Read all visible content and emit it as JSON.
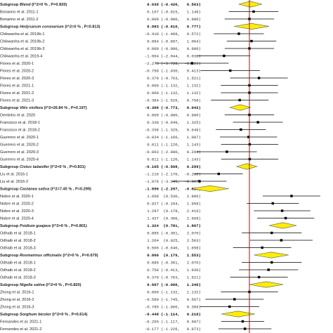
{
  "chart_data": {
    "type": "forest",
    "title": "",
    "xlabel": "",
    "ylabel": "",
    "xlim": [
      -3.2,
      3.2
    ],
    "reference_line": 0,
    "colors": {
      "reference": "#8b1a1a",
      "diamond_fill": "#ffee00",
      "diamond_stroke": "#555555",
      "box": "#000000"
    },
    "rows": [
      {
        "kind": "subgroup",
        "label_prefix": "Subgroup ",
        "label_name": "Blend",
        "label_suffix": " (I^2=0 % , P=0.820)",
        "est": 0.039,
        "lo": -0.426,
        "hi": 0.503
      },
      {
        "kind": "study",
        "label": "Bonanno et al. 2011-1",
        "est": 0.167,
        "lo": -0.815,
        "hi": 1.149
      },
      {
        "kind": "study",
        "label": "Bonanno et al. 2011-2",
        "est": 0.0,
        "lo": -0.98,
        "hi": 0.98
      },
      {
        "kind": "subgroup",
        "label_prefix": "Subgroup ",
        "label_name": "Hedysarum coronarium",
        "label_suffix": " (I^2=0 % , P=0.813)",
        "est": 0.083,
        "lo": -0.61,
        "hi": 0.777
      },
      {
        "kind": "study",
        "label": "Chikwanha et al. 2019b-1",
        "est": -0.418,
        "lo": -1.409,
        "hi": 0.572
      },
      {
        "kind": "study",
        "label": "Chikwanha et al. 2019b-2",
        "est": 0.084,
        "lo": -0.897,
        "hi": 1.064
      },
      {
        "kind": "study",
        "label": "Chikwanha et al. 2019b-3",
        "est": 0.0,
        "lo": -0.98,
        "hi": 0.98
      },
      {
        "kind": "study",
        "label": "Chikwanha et al. 2019-4",
        "est": -1.004,
        "lo": -2.044,
        "hi": 0.036
      },
      {
        "kind": "study",
        "label": "Flores et al. 2020-1",
        "est": -2.275,
        "lo": -3.728,
        "hi": -0.823
      },
      {
        "kind": "study",
        "label": "Flores et al. 2020-2",
        "est": -0.758,
        "lo": -1.93,
        "hi": 0.413
      },
      {
        "kind": "study",
        "label": "Flores et al. 2020-3",
        "est": 0.379,
        "lo": -0.763,
        "hi": 1.521
      },
      {
        "kind": "study",
        "label": "Flores et al. 2021-1",
        "est": 0.0,
        "lo": -1.132,
        "hi": 1.132
      },
      {
        "kind": "study",
        "label": "Flores et al. 2021-2",
        "est": 0.0,
        "lo": -1.132,
        "hi": 1.132
      },
      {
        "kind": "study",
        "label": "Flores et al. 2021-3",
        "est": -0.384,
        "lo": -1.526,
        "hi": 0.758
      },
      {
        "kind": "subgroup",
        "label_prefix": "Subgroup ",
        "label_name": "Vitis vinifera",
        "label_suffix": " (I^2=26.84 % , P=0.197)",
        "est": -0.366,
        "lo": -0.773,
        "hi": 0.042
      },
      {
        "kind": "study",
        "label": "Dentinho et al. 2020",
        "est": 0.0,
        "lo": -0.98,
        "hi": 0.98
      },
      {
        "kind": "study",
        "label": "Francisco et al. 2018-1",
        "est": 0.338,
        "lo": -0.649,
        "hi": 1.325
      },
      {
        "kind": "study",
        "label": "Francisco et al. 2018-2",
        "est": -0.338,
        "lo": -1.325,
        "hi": 0.649
      },
      {
        "kind": "study",
        "label": "Guerrero et al. 2020-1",
        "est": -0.034,
        "lo": -1.166,
        "hi": 1.097
      },
      {
        "kind": "study",
        "label": "Guerrero et al. 2020-2",
        "est": 0.011,
        "lo": -1.12,
        "hi": 1.143
      },
      {
        "kind": "study",
        "label": "Guerrero et al. 2020-3",
        "est": -0.893,
        "lo": -2.08,
        "hi": 0.294
      },
      {
        "kind": "study",
        "label": "Guerrero et al. 2020-4",
        "est": 0.011,
        "lo": -1.12,
        "hi": 1.143
      },
      {
        "kind": "subgroup",
        "label_prefix": "Subgroup ",
        "label_name": "Cistus ladanifer",
        "label_suffix": " (I^2=0 % , P=0.831)",
        "est": -0.105,
        "lo": -0.508,
        "hi": 0.299
      },
      {
        "kind": "study",
        "label": "Liu et al. 2016-1",
        "est": -1.216,
        "lo": -2.17,
        "hi": -0.262
      },
      {
        "kind": "study",
        "label": "Liu et al. 2016-2",
        "est": -1.976,
        "lo": -3.045,
        "hi": -0.907
      },
      {
        "kind": "subgroup",
        "label_prefix": "Subgroup ",
        "label_name": "Castanea sativa",
        "label_suffix": " (I^2=7.45 % , P=0.299)",
        "est": -1.556,
        "lo": -2.297,
        "hi": -0.815
      },
      {
        "kind": "study",
        "label": "Nobre et al. 2020-1",
        "est": 1.668,
        "lo": 0.53,
        "hi": 2.806
      },
      {
        "kind": "study",
        "label": "Nobre et al. 2020-2",
        "est": 0.927,
        "lo": -0.104,
        "hi": 1.958
      },
      {
        "kind": "study",
        "label": "Nobre et al. 2020-3",
        "est": 1.297,
        "lo": 0.178,
        "hi": 2.416
      },
      {
        "kind": "study",
        "label": "Nobre et al. 2020-4",
        "est": 1.437,
        "lo": 0.306,
        "hi": 2.568
      },
      {
        "kind": "subgroup",
        "label_prefix": "Subgroup ",
        "label_name": "Psidium guajava",
        "label_suffix": " (I^2=0 % , P=0.801)",
        "est": 1.324,
        "lo": 0.781,
        "hi": 1.867
      },
      {
        "kind": "study",
        "label": "Odhaib et al. 2018-1",
        "est": 0.885,
        "lo": -0.301,
        "hi": 2.07
      },
      {
        "kind": "study",
        "label": "Odhaib et al. 2018-2",
        "est": 1.264,
        "lo": 0.025,
        "hi": 2.503
      },
      {
        "kind": "study",
        "label": "Odhaib et al. 2018-3",
        "est": 0.506,
        "lo": -0.646,
        "hi": 1.658
      },
      {
        "kind": "subgroup",
        "label_prefix": "Subgroup ",
        "label_name": "Rosmarinus officinalis",
        "label_suffix": " (I^2=0 % , P=0.679)",
        "est": 0.866,
        "lo": 0.179,
        "hi": 1.553
      },
      {
        "kind": "study",
        "label": "Odhaib et al. 2018-1",
        "est": 0.885,
        "lo": -0.301,
        "hi": 2.07
      },
      {
        "kind": "study",
        "label": "Odhaib et al. 2018-2",
        "est": 0.758,
        "lo": -0.413,
        "hi": 1.93
      },
      {
        "kind": "study",
        "label": "Odhaib et al. 2018-3",
        "est": 0.379,
        "lo": -0.763,
        "hi": 1.521
      },
      {
        "kind": "subgroup",
        "label_prefix": "Subgroup ",
        "label_name": "Nigella sativa",
        "label_suffix": " (I^2=0 % , P=0.820)",
        "est": 0.667,
        "lo": -0.006,
        "hi": 1.34
      },
      {
        "kind": "study",
        "label": "Zhong et al. 2016-1",
        "est": 0.0,
        "lo": -1.132,
        "hi": 1.132
      },
      {
        "kind": "study",
        "label": "Zhong et al. 2016-2",
        "est": -0.589,
        "lo": -1.745,
        "hi": 0.567
      },
      {
        "kind": "study",
        "label": "Zhong et al. 2016-3",
        "est": -0.785,
        "lo": -1.96,
        "hi": 0.389
      },
      {
        "kind": "subgroup",
        "label_prefix": "Subgroup ",
        "label_name": "Sorghum bicolor",
        "label_suffix": " (I^2=0 % , P=0.614)",
        "est": -0.448,
        "lo": -1.114,
        "hi": 0.218
      },
      {
        "kind": "study",
        "label": "Fernandes et al. 2021-1",
        "est": -0.265,
        "lo": -1.117,
        "hi": 0.587
      },
      {
        "kind": "study",
        "label": "Fernandes et al. 2021-2",
        "est": -0.177,
        "lo": -1.226,
        "hi": 0.873
      }
    ]
  }
}
